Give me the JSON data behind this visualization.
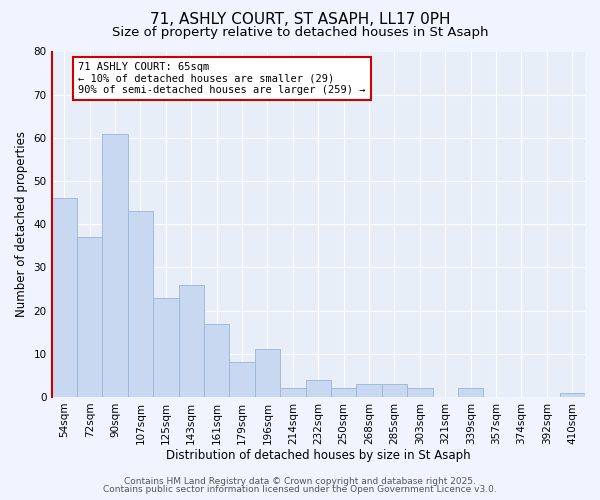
{
  "title": "71, ASHLY COURT, ST ASAPH, LL17 0PH",
  "subtitle": "Size of property relative to detached houses in St Asaph",
  "xlabel": "Distribution of detached houses by size in St Asaph",
  "ylabel": "Number of detached properties",
  "categories": [
    "54sqm",
    "72sqm",
    "90sqm",
    "107sqm",
    "125sqm",
    "143sqm",
    "161sqm",
    "179sqm",
    "196sqm",
    "214sqm",
    "232sqm",
    "250sqm",
    "268sqm",
    "285sqm",
    "303sqm",
    "321sqm",
    "339sqm",
    "357sqm",
    "374sqm",
    "392sqm",
    "410sqm"
  ],
  "values": [
    46,
    37,
    61,
    43,
    23,
    26,
    17,
    8,
    11,
    2,
    4,
    2,
    3,
    3,
    2,
    0,
    2,
    0,
    0,
    0,
    1
  ],
  "bar_color": "#c8d8f0",
  "bar_edge_color": "#9ab5d8",
  "highlight_color": "#cc0000",
  "ylim": [
    0,
    80
  ],
  "yticks": [
    0,
    10,
    20,
    30,
    40,
    50,
    60,
    70,
    80
  ],
  "annotation_title": "71 ASHLY COURT: 65sqm",
  "annotation_line1": "← 10% of detached houses are smaller (29)",
  "annotation_line2": "90% of semi-detached houses are larger (259) →",
  "annotation_box_color": "#ffffff",
  "annotation_box_edge": "#cc0000",
  "footer1": "Contains HM Land Registry data © Crown copyright and database right 2025.",
  "footer2": "Contains public sector information licensed under the Open Government Licence v3.0.",
  "plot_bg_color": "#e8eef8",
  "fig_bg_color": "#f0f4ff",
  "grid_color": "#ffffff",
  "title_fontsize": 11,
  "subtitle_fontsize": 9.5,
  "label_fontsize": 8.5,
  "tick_fontsize": 7.5,
  "annotation_fontsize": 7.5,
  "footer_fontsize": 6.5
}
